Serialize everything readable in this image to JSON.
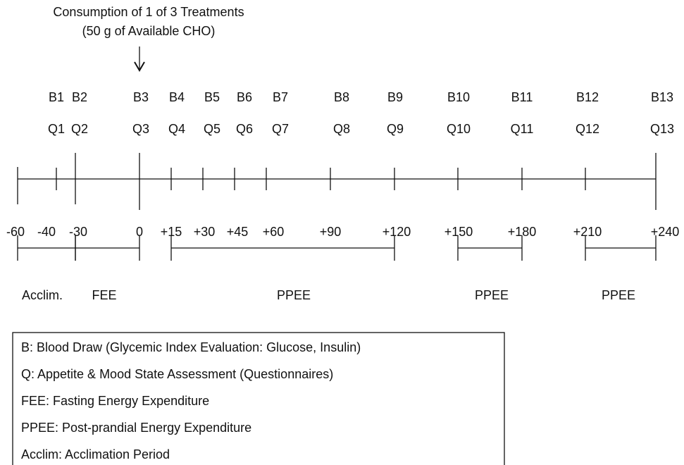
{
  "header": {
    "lines": [
      "Consumption of 1 of 3 Treatments",
      "(50 g of Available CHO)"
    ]
  },
  "blood_draws": [
    "B1",
    "B2",
    "B3",
    "B4",
    "B5",
    "B6",
    "B7",
    "B8",
    "B9",
    "B10",
    "B11",
    "B12",
    "B13"
  ],
  "questionnaires": [
    "Q1",
    "Q2",
    "Q3",
    "Q4",
    "Q5",
    "Q6",
    "Q7",
    "Q8",
    "Q9",
    "Q10",
    "Q11",
    "Q12",
    "Q13"
  ],
  "times": [
    "-60",
    "-40",
    "-30",
    "0",
    "+15",
    "+30",
    "+45",
    "+60",
    "+90",
    "+120",
    "+150",
    "+180",
    "+210",
    "+240"
  ],
  "periods": [
    "Acclim.",
    "FEE",
    "PPEE",
    "PPEE",
    "PPEE"
  ],
  "legend": [
    "B: Blood Draw (Glycemic Index Evaluation: Glucose, Insulin)",
    "Q: Appetite & Mood State Assessment (Questionnaires)",
    "FEE: Fasting Energy Expenditure",
    "PPEE: Post-prandial Energy Expenditure",
    "Acclim: Acclimation Period"
  ]
}
